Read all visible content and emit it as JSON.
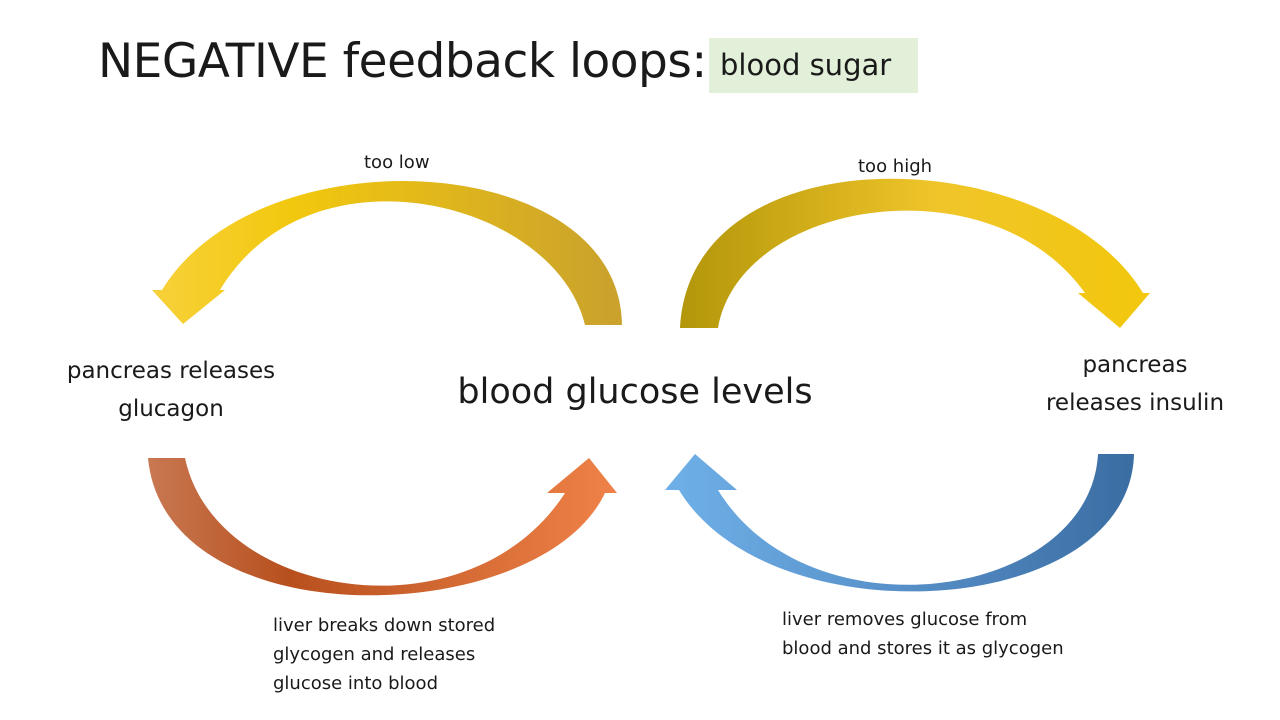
{
  "title": "NEGATIVE feedback loops:",
  "tag": "blood sugar",
  "center": "blood glucose levels",
  "low_branch": {
    "trigger": "too low",
    "response_lines": [
      "pancreas releases",
      "glucagon"
    ],
    "effect_lines": [
      "liver breaks down stored",
      "glycogen and releases",
      "glucose into blood"
    ]
  },
  "high_branch": {
    "trigger": "too high",
    "response_lines": [
      "pancreas",
      "releases insulin"
    ],
    "effect_lines": [
      "liver removes glucose from",
      "blood and stores it as glycogen"
    ]
  },
  "colors": {
    "low_arrow": [
      "#f5cc1c",
      "#cda628"
    ],
    "high_arrow": [
      "#b89a10",
      "#f0c52a"
    ],
    "orange_arrow": [
      "#c4673a",
      "#ee7a3c"
    ],
    "blue_arrow": [
      "#6aa6df",
      "#3e72a8"
    ],
    "tag_background": "#e2f0d9"
  }
}
